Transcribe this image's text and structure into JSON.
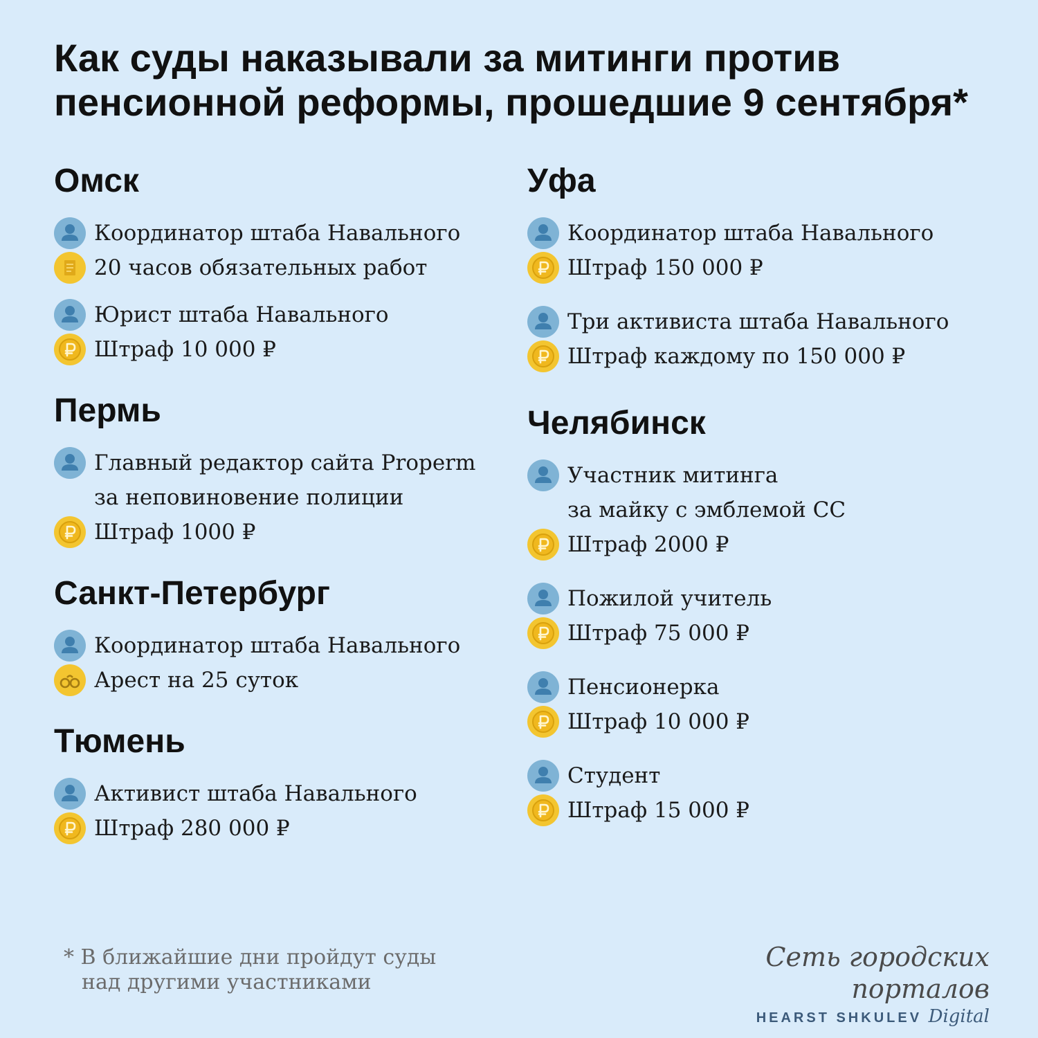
{
  "title": {
    "line1": "Как суды наказывали за митинги против",
    "line2": "пенсионной реформы, прошедшие 9 сентября*"
  },
  "left": {
    "omsk": {
      "name": "Омск",
      "e1_person": "Координатор штаба Навального",
      "e1_penalty": "20 часов обязательных работ",
      "e2_person": "Юрист штаба Навального",
      "e2_penalty": "Штраф 10 000 ₽"
    },
    "perm": {
      "name": "Пермь",
      "e1_person_l1": "Главный редактор сайта Properm",
      "e1_person_l2": "за неповиновение полиции",
      "e1_penalty": "Штраф 1000 ₽"
    },
    "spb": {
      "name": "Санкт-Петербург",
      "e1_person": "Координатор штаба Навального",
      "e1_penalty": "Арест на 25 суток"
    },
    "tyumen": {
      "name": "Тюмень",
      "e1_person": "Активист штаба Навального",
      "e1_penalty": "Штраф 280 000 ₽"
    }
  },
  "right": {
    "ufa": {
      "name": "Уфа",
      "e1_person": "Координатор штаба Навального",
      "e1_penalty": "Штраф 150 000 ₽",
      "e2_person": "Три активиста штаба Навального",
      "e2_penalty": "Штраф каждому по 150 000 ₽"
    },
    "chel": {
      "name": "Челябинск",
      "e1_person_l1": "Участник митинга",
      "e1_person_l2": "за майку с эмблемой СС",
      "e1_penalty": "Штраф 2000 ₽",
      "e2_person": "Пожилой учитель",
      "e2_penalty": "Штраф 75 000 ₽",
      "e3_person": "Пенсионерка",
      "e3_penalty": "Штраф 10 000 ₽",
      "e4_person": "Студент",
      "e4_penalty": "Штраф 15 000 ₽"
    }
  },
  "footnote": {
    "line1": "* В ближайшие дни пройдут суды",
    "line2": "над другими участниками"
  },
  "logo": {
    "script": "Сеть городских порталов",
    "sub": "HEARST SHKULEV",
    "sub_italic": "Digital"
  },
  "icons": {
    "person": "person-icon",
    "coin": "ruble-coin-icon",
    "doc": "document-icon",
    "cuffs": "handcuffs-icon"
  },
  "colors": {
    "background": "#d9ebfa",
    "person_circle": "#7fb3d5",
    "coin_circle": "#f3c530"
  }
}
